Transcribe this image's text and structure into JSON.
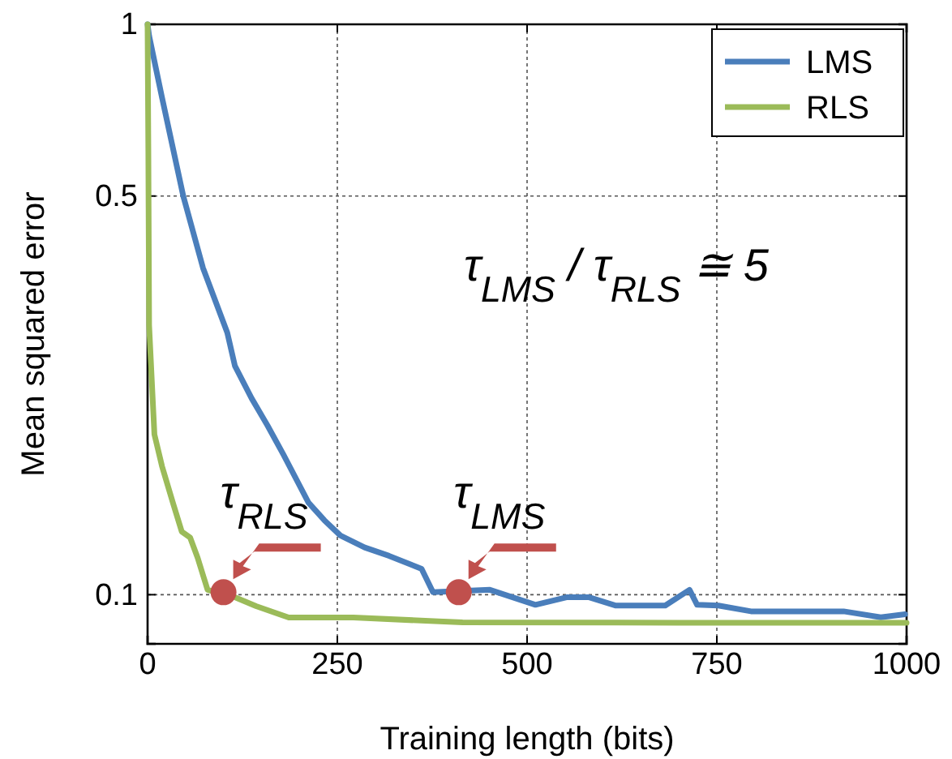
{
  "chart_data": {
    "type": "line",
    "xlabel": "Training length (bits)",
    "ylabel": "Mean squared error",
    "xlim": [
      0,
      1000
    ],
    "xticks": [
      0,
      250,
      500,
      750,
      1000
    ],
    "ylim": [
      0.082,
      1
    ],
    "yticks": [
      0.1,
      0.5,
      1
    ],
    "log": true,
    "grid": true,
    "legend": "top right",
    "series": [
      {
        "name": "LMS",
        "color": "#4a7ebb",
        "x": [
          0,
          2,
          19,
          47,
          73,
          105,
          115,
          137,
          158,
          179,
          212,
          233,
          254,
          286,
          318,
          361,
          376,
          451,
          511,
          553,
          581,
          617,
          682,
          714,
          724,
          752,
          795,
          868,
          917,
          966,
          998
        ],
        "values": [
          1,
          0.955,
          0.744,
          0.5,
          0.374,
          0.288,
          0.252,
          0.221,
          0.198,
          0.176,
          0.145,
          0.135,
          0.127,
          0.121,
          0.117,
          0.111,
          0.101,
          0.102,
          0.096,
          0.099,
          0.099,
          0.0957,
          0.0957,
          0.102,
          0.096,
          0.0957,
          0.0935,
          0.0935,
          0.0935,
          0.0913,
          0.0924
        ]
      },
      {
        "name": "RLS",
        "color": "#9bbb59",
        "x": [
          0,
          1,
          2,
          9,
          19,
          34,
          45,
          56,
          66,
          79,
          115,
          143,
          186,
          271,
          415,
          700,
          1000
        ],
        "values": [
          1,
          0.6,
          0.297,
          0.191,
          0.168,
          0.144,
          0.129,
          0.126,
          0.116,
          0.102,
          0.099,
          0.0955,
          0.0912,
          0.0912,
          0.0894,
          0.0893,
          0.0893
        ]
      }
    ],
    "annotations": [
      {
        "text": "τ$_{RLS}$",
        "x": 100,
        "y": 0.101
      },
      {
        "text": "τ$_{LMS}$",
        "x": 410,
        "y": 0.101
      },
      "τ$_{LMS}$ / τ$_{RLS}$ ≅ 5"
    ]
  }
}
